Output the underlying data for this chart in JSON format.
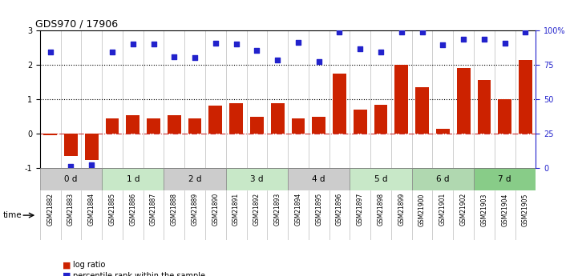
{
  "title": "GDS970 / 17906",
  "samples": [
    "GSM21882",
    "GSM21883",
    "GSM21884",
    "GSM21885",
    "GSM21886",
    "GSM21887",
    "GSM21888",
    "GSM21889",
    "GSM21890",
    "GSM21891",
    "GSM21892",
    "GSM21893",
    "GSM21894",
    "GSM21895",
    "GSM21896",
    "GSM21897",
    "GSM21898",
    "GSM21899",
    "GSM21900",
    "GSM21901",
    "GSM21902",
    "GSM21903",
    "GSM21904",
    "GSM21905"
  ],
  "log_ratio": [
    -0.05,
    -0.65,
    -0.75,
    0.45,
    0.55,
    0.45,
    0.55,
    0.45,
    0.82,
    0.9,
    0.5,
    0.9,
    0.45,
    0.5,
    1.75,
    0.7,
    0.85,
    2.0,
    1.35,
    0.15,
    1.9,
    1.55,
    1.0,
    2.15
  ],
  "percentile_left_scale": [
    2.37,
    -0.95,
    -0.9,
    2.38,
    2.6,
    2.6,
    2.23,
    2.22,
    2.62,
    2.6,
    2.43,
    2.13,
    2.65,
    2.1,
    2.95,
    2.47,
    2.38,
    2.95,
    2.95,
    2.58,
    2.75,
    2.75,
    2.63,
    2.95
  ],
  "time_groups": [
    {
      "label": "0 d",
      "start": 0,
      "end": 3
    },
    {
      "label": "1 d",
      "start": 3,
      "end": 6
    },
    {
      "label": "2 d",
      "start": 6,
      "end": 9
    },
    {
      "label": "3 d",
      "start": 9,
      "end": 12
    },
    {
      "label": "4 d",
      "start": 12,
      "end": 15
    },
    {
      "label": "5 d",
      "start": 15,
      "end": 18
    },
    {
      "label": "6 d",
      "start": 18,
      "end": 21
    },
    {
      "label": "7 d",
      "start": 21,
      "end": 24
    }
  ],
  "time_group_colors": [
    "#cccccc",
    "#c8e8c8",
    "#cccccc",
    "#c8e8c8",
    "#cccccc",
    "#c8e8c8",
    "#b0d8b0",
    "#88cc88"
  ],
  "bar_color": "#cc2200",
  "dot_color": "#2222cc",
  "ylim_left": [
    -1,
    3
  ],
  "yticks_left": [
    -1,
    0,
    1,
    2,
    3
  ],
  "ytick_labels_left": [
    "-1",
    "0",
    "1",
    "2",
    "3"
  ],
  "yticks_right": [
    0,
    25,
    50,
    75,
    100
  ],
  "ytick_labels_right": [
    "0",
    "25",
    "50",
    "75",
    "100%"
  ],
  "hline_zero_color": "#cc3333",
  "dotted_lines": [
    1,
    2
  ],
  "bar_width": 0.65,
  "dot_size": 16
}
